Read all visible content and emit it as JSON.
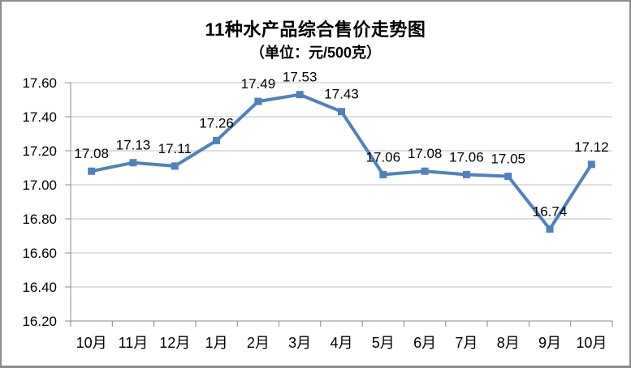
{
  "chart_data": {
    "type": "line",
    "title": "11种水产品综合售价走势图",
    "subtitle": "（单位：元/500克）",
    "categories": [
      "10月",
      "11月",
      "12月",
      "1月",
      "2月",
      "3月",
      "4月",
      "5月",
      "6月",
      "7月",
      "8月",
      "9月",
      "10月"
    ],
    "series": [
      {
        "name": "综合售价",
        "values": [
          17.08,
          17.13,
          17.11,
          17.26,
          17.49,
          17.53,
          17.43,
          17.06,
          17.08,
          17.06,
          17.05,
          16.74,
          17.12
        ],
        "data_labels": [
          "17.08",
          "17.13",
          "17.11",
          "17.26",
          "17.49",
          "17.53",
          "17.43",
          "17.06",
          "17.08",
          "17.06",
          "17.05",
          "16.74",
          "17.12"
        ]
      }
    ],
    "xlabel": "",
    "ylabel": "",
    "ylim": [
      16.2,
      17.6
    ],
    "ytick_step": 0.2,
    "ytick_labels": [
      "16.20",
      "16.40",
      "16.60",
      "16.80",
      "17.00",
      "17.20",
      "17.40",
      "17.60"
    ],
    "grid": true,
    "legend": "none",
    "marker": "square",
    "colors": {
      "series": "#4f81bd",
      "gridline": "#bfbfbf",
      "axis": "#898989",
      "text": "#000000"
    }
  }
}
